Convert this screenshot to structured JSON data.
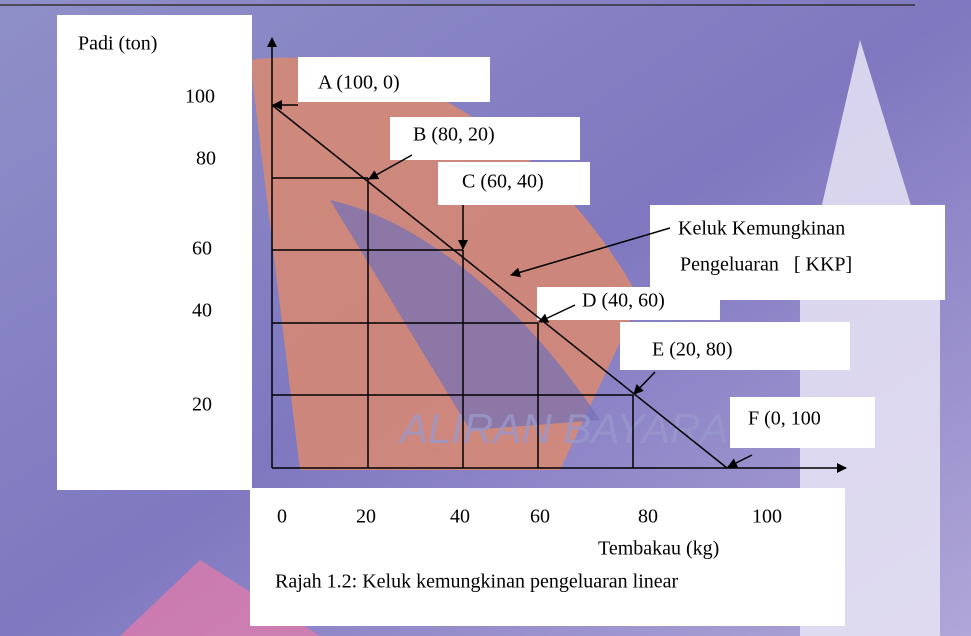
{
  "y_axis": {
    "title": "Padi (ton)",
    "labels": [
      "100",
      "80",
      "60",
      "40",
      "20"
    ]
  },
  "x_axis": {
    "title": "Tembakau  (kg)",
    "labels": [
      "0",
      "20",
      "40",
      "60",
      "80",
      "100"
    ]
  },
  "points": [
    {
      "label": "A (100, 0)"
    },
    {
      "label": "B (80, 20)"
    },
    {
      "label": "C (60, 40)"
    },
    {
      "label": "D (40, 60)"
    },
    {
      "label": "E (20, 80)"
    },
    {
      "label": "F (0, 100"
    }
  ],
  "curve_label": {
    "line1": "Keluk Kemungkinan",
    "line2": "Pengeluaran   [ KKP]"
  },
  "caption": "Rajah 1.2: Keluk kemungkinan pengeluaran linear",
  "background": {
    "watermark": "ALIRAN BAYARAN"
  }
}
